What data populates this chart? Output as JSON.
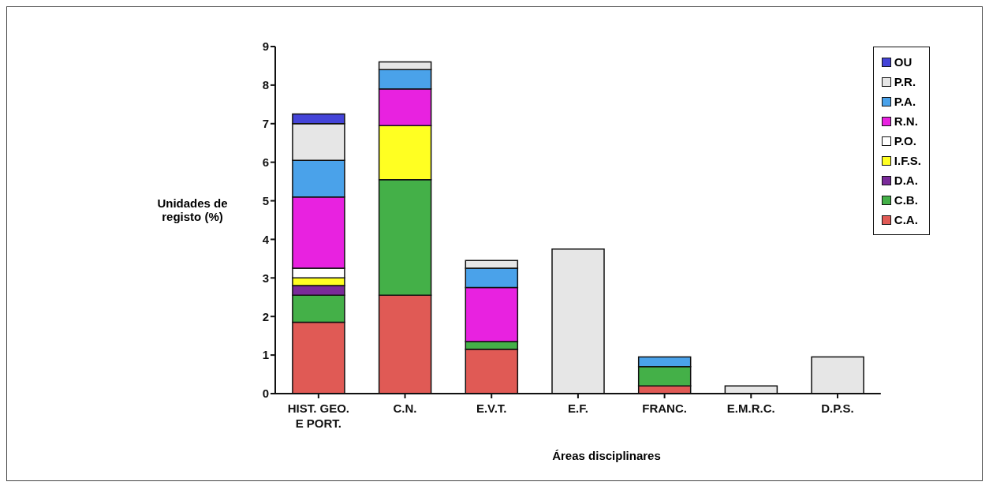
{
  "chart_data": {
    "type": "bar",
    "stacked": true,
    "xlabel": "Áreas disciplinares",
    "ylabel": "Unidades de registo (%)",
    "categories": [
      "HIST. GEO. E PORT.",
      "C.N.",
      "E.V.T.",
      "E.F.",
      "FRANC.",
      "E.M.R.C.",
      "D.P.S."
    ],
    "series": [
      {
        "name": "C.A.",
        "color": "#e05a55",
        "values": [
          1.85,
          2.55,
          1.15,
          null,
          0.2,
          null,
          null
        ]
      },
      {
        "name": "C.B.",
        "color": "#44b048",
        "values": [
          0.7,
          3.0,
          0.2,
          null,
          0.5,
          null,
          null
        ]
      },
      {
        "name": "D.A.",
        "color": "#7a2a9a",
        "values": [
          0.25,
          null,
          null,
          null,
          null,
          null,
          null
        ]
      },
      {
        "name": "I.F.S.",
        "color": "#ffff22",
        "values": [
          0.2,
          1.4,
          null,
          null,
          null,
          null,
          null
        ]
      },
      {
        "name": "P.O.",
        "color": "#ffffff",
        "values": [
          0.25,
          null,
          null,
          null,
          null,
          null,
          null
        ]
      },
      {
        "name": "R.N.",
        "color": "#e822e0",
        "values": [
          1.85,
          0.95,
          1.4,
          null,
          null,
          null,
          null
        ]
      },
      {
        "name": "P.A.",
        "color": "#4aa2ea",
        "values": [
          0.95,
          0.5,
          0.5,
          null,
          0.25,
          null,
          null
        ]
      },
      {
        "name": "P.R.",
        "color": "#e6e6e6",
        "values": [
          0.95,
          0.2,
          0.2,
          3.75,
          null,
          0.2,
          0.95
        ]
      },
      {
        "name": "OU",
        "color": "#4444d8",
        "values": [
          0.25,
          null,
          null,
          null,
          null,
          null,
          null
        ]
      }
    ],
    "ylim": [
      0,
      9
    ],
    "yticks": [
      0,
      1,
      2,
      3,
      4,
      5,
      6,
      7,
      8,
      9
    ],
    "grid": false,
    "legend": "top right"
  }
}
